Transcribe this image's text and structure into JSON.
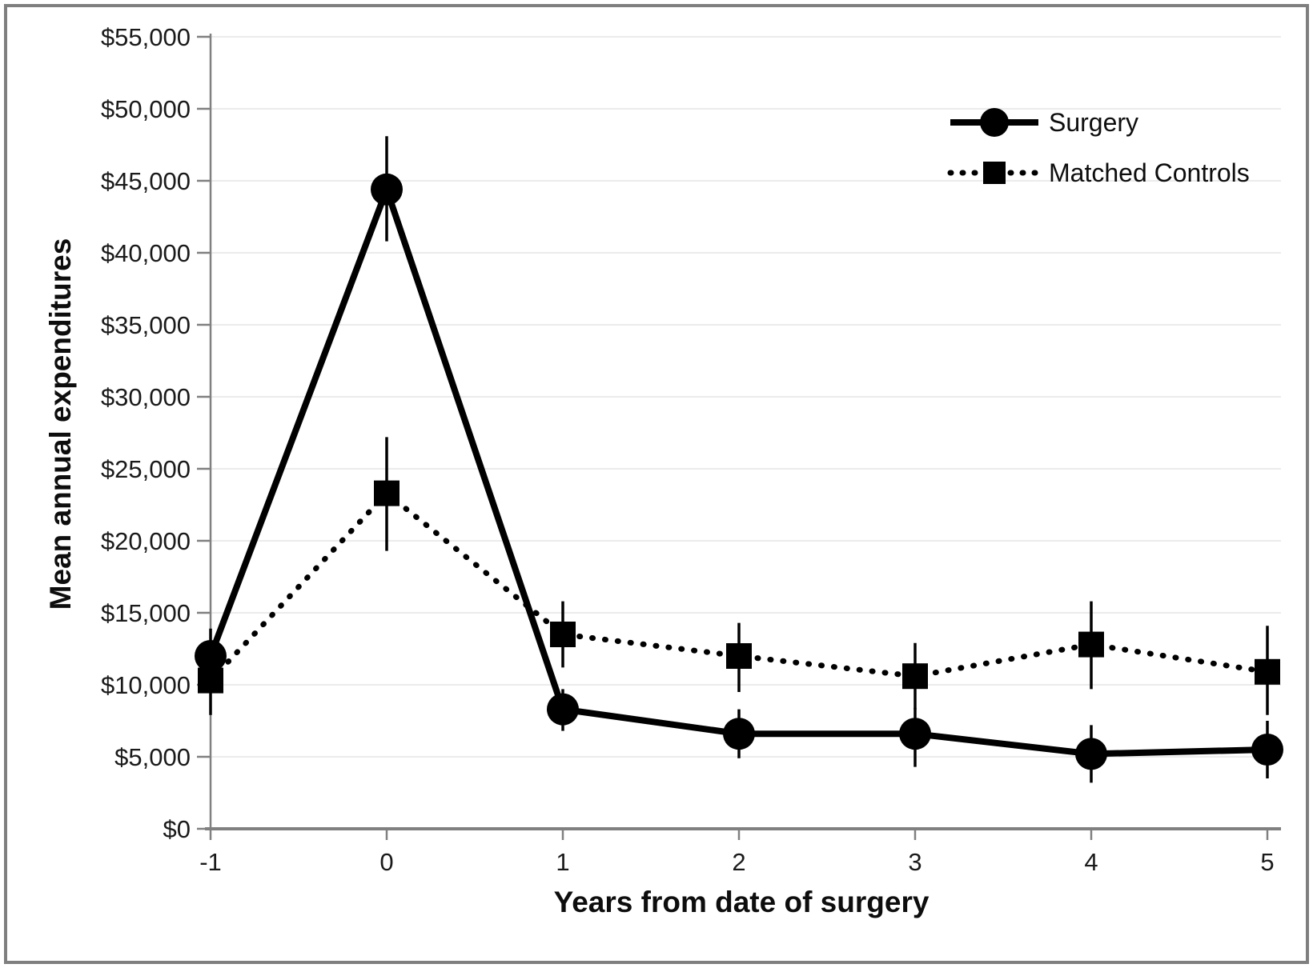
{
  "figure": {
    "background_color": "#ffffff",
    "border_color": "#7f7f7f",
    "gridline_color": "#ebebeb",
    "axis_color": "#808080",
    "series_color": "#000000"
  },
  "chart_data": {
    "type": "line",
    "title": "",
    "xlabel": "Years from date of surgery",
    "ylabel": "Mean annual expenditures",
    "x": [
      -1,
      0,
      1,
      2,
      3,
      4,
      5
    ],
    "x_tick_labels": [
      "-1",
      "0",
      "1",
      "2",
      "3",
      "4",
      "5"
    ],
    "xlim": [
      -1,
      5
    ],
    "y_ticks": [
      0,
      5000,
      10000,
      15000,
      20000,
      25000,
      30000,
      35000,
      40000,
      45000,
      50000,
      55000
    ],
    "y_tick_labels": [
      "$0",
      "$5,000",
      "$10,000",
      "$15,000",
      "$20,000",
      "$25,000",
      "$30,000",
      "$35,000",
      "$40,000",
      "$45,000",
      "$50,000",
      "$55,000"
    ],
    "ylim": [
      0,
      55000
    ],
    "grid": "horizontal",
    "legend_position": "upper-right-inside",
    "error_bars": true,
    "series": [
      {
        "name": "Surgery",
        "marker": "circle",
        "line_style": "solid",
        "color": "#000000",
        "values": [
          12000,
          44400,
          8300,
          6600,
          6600,
          5200,
          5500
        ],
        "error_low": [
          10200,
          40800,
          6800,
          4900,
          4300,
          3200,
          3500
        ],
        "error_high": [
          13900,
          48100,
          9700,
          8300,
          8400,
          7200,
          7500
        ]
      },
      {
        "name": "Matched Controls",
        "marker": "square",
        "line_style": "dotted",
        "color": "#000000",
        "values": [
          10300,
          23300,
          13500,
          12000,
          10600,
          12800,
          10900
        ],
        "error_low": [
          7900,
          19300,
          11200,
          9500,
          8300,
          9700,
          7900
        ],
        "error_high": [
          12700,
          27200,
          15800,
          14300,
          12900,
          15800,
          14100
        ]
      }
    ]
  }
}
